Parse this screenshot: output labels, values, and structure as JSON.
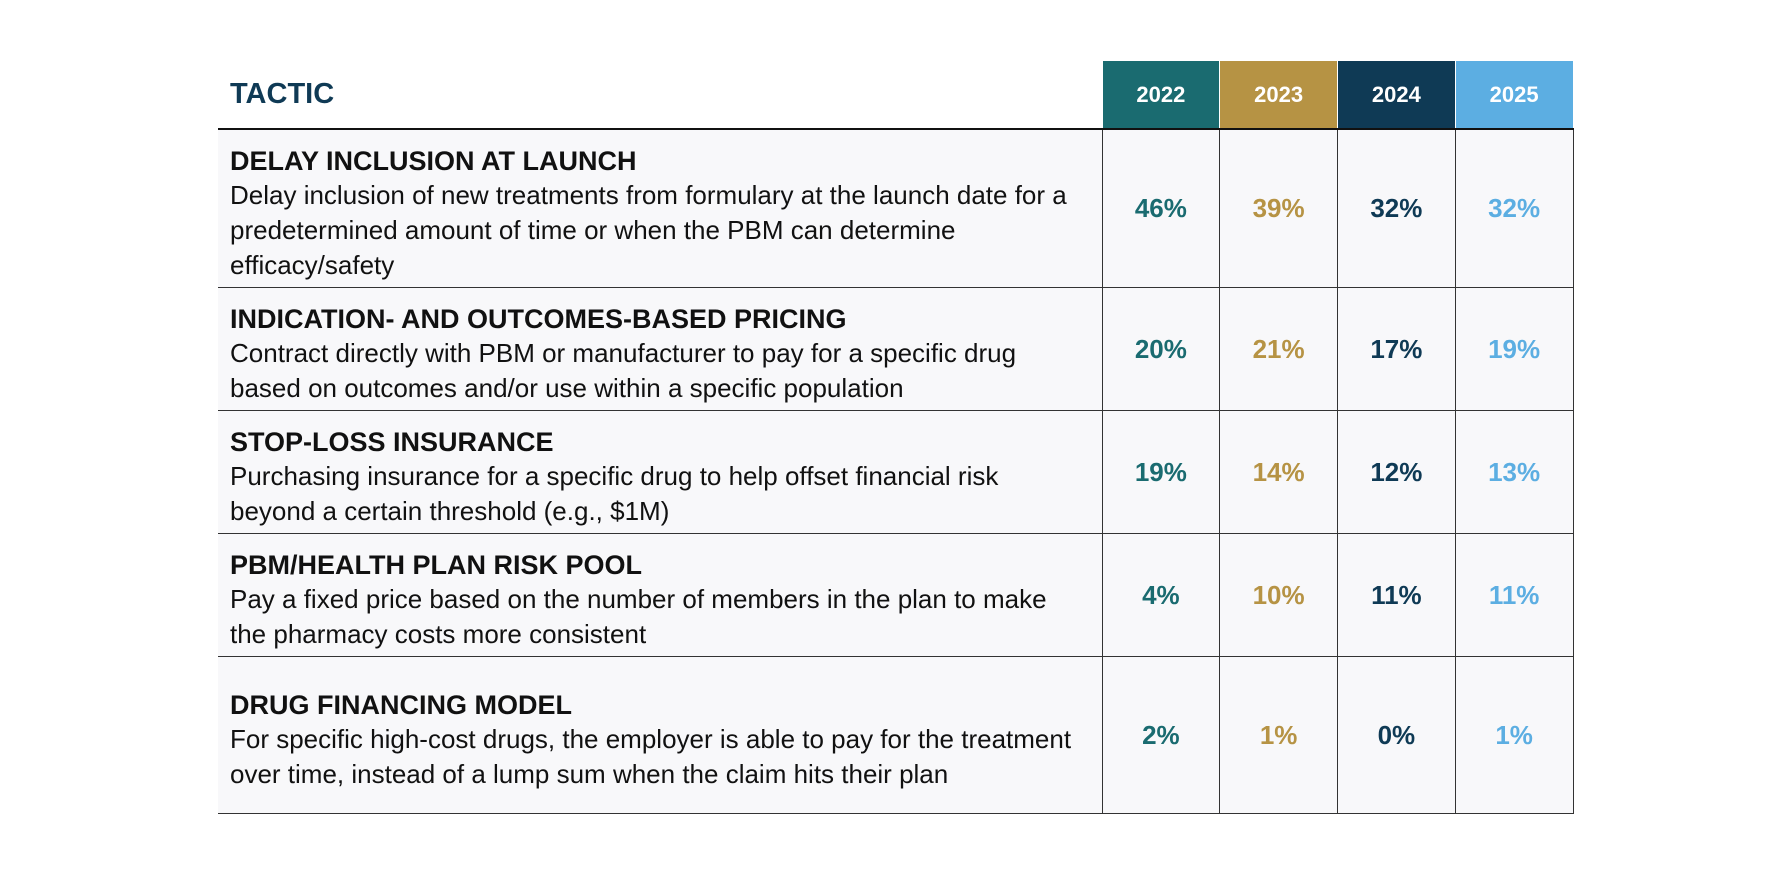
{
  "chart_data": {
    "type": "table",
    "columns": [
      "TACTIC",
      "2022",
      "2023",
      "2024",
      "2025"
    ],
    "series_colors": [
      "#1a6b70",
      "#b69344",
      "#0f3a55",
      "#5caee2"
    ],
    "rows": [
      {
        "name": "DELAY INCLUSION AT LAUNCH",
        "description": "Delay inclusion of new treatments from formulary at the launch date for a predetermined amount of time or when the PBM can determine efficacy/safety",
        "values": [
          "46%",
          "39%",
          "32%",
          "32%"
        ]
      },
      {
        "name": "INDICATION- AND OUTCOMES-BASED PRICING",
        "description": "Contract directly with PBM or manufacturer to pay for a specific drug based on outcomes and/or use within a specific population",
        "values": [
          "20%",
          "21%",
          "17%",
          "19%"
        ]
      },
      {
        "name": "STOP-LOSS INSURANCE",
        "description": "Purchasing insurance for a specific drug to help offset financial risk beyond a certain threshold (e.g., $1M)",
        "values": [
          "19%",
          "14%",
          "12%",
          "13%"
        ]
      },
      {
        "name": "PBM/HEALTH PLAN RISK POOL",
        "description": "Pay a fixed price based on the number of members in the plan to make the pharmacy costs more consistent",
        "values": [
          "4%",
          "10%",
          "11%",
          "11%"
        ]
      },
      {
        "name": "DRUG FINANCING MODEL",
        "description": "For specific high-cost drugs, the employer is able to pay for the treatment over time, instead of a lump sum when the claim hits their plan",
        "values": [
          "2%",
          "1%",
          "0%",
          "1%"
        ]
      }
    ]
  }
}
